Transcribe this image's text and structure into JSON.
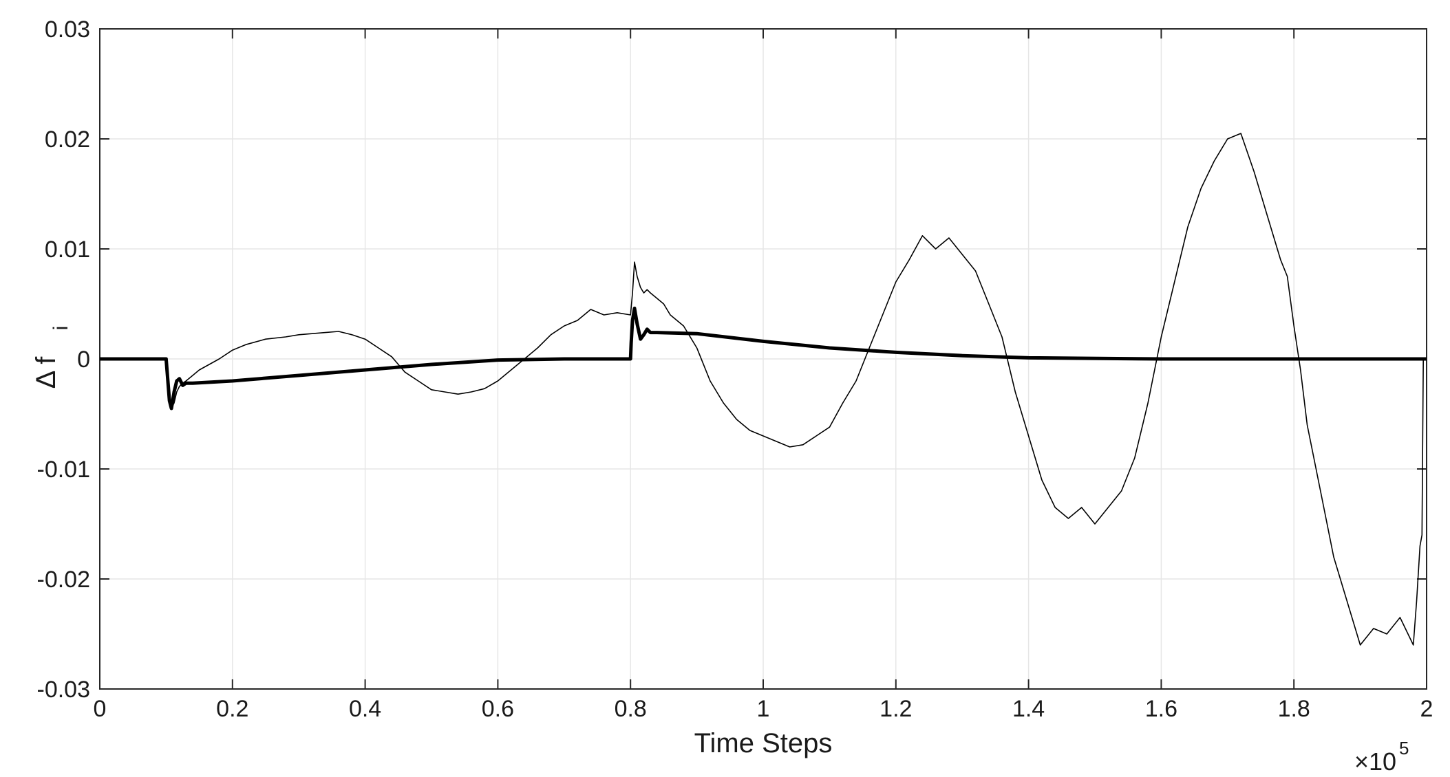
{
  "chart_data": {
    "type": "line",
    "title": "",
    "xlabel": "Time Steps",
    "ylabel_main": "Δ f",
    "ylabel_sub": "i",
    "x_exponent_label": "×10",
    "x_exponent_power": "5",
    "xlim": [
      0,
      2
    ],
    "ylim": [
      -0.03,
      0.03
    ],
    "grid": true,
    "x_ticks": [
      0,
      0.2,
      0.4,
      0.6,
      0.8,
      1,
      1.2,
      1.4,
      1.6,
      1.8,
      2
    ],
    "x_tick_labels": [
      "0",
      "0.2",
      "0.4",
      "0.6",
      "0.8",
      "1",
      "1.2",
      "1.4",
      "1.6",
      "1.8",
      "2"
    ],
    "y_ticks": [
      0.03,
      0.02,
      0.01,
      0,
      -0.01,
      -0.02,
      -0.03
    ],
    "y_tick_labels": [
      "0.03",
      "0.02",
      "0.01",
      "0",
      "-0.01",
      "-0.02",
      "-0.03"
    ],
    "series": [
      {
        "style": "thin",
        "x": [
          0,
          0.1,
          0.104,
          0.108,
          0.112,
          0.116,
          0.12,
          0.125,
          0.13,
          0.14,
          0.15,
          0.18,
          0.2,
          0.22,
          0.25,
          0.28,
          0.3,
          0.32,
          0.34,
          0.36,
          0.38,
          0.4,
          0.42,
          0.44,
          0.45,
          0.46,
          0.48,
          0.5,
          0.52,
          0.54,
          0.56,
          0.58,
          0.6,
          0.62,
          0.64,
          0.66,
          0.68,
          0.7,
          0.72,
          0.74,
          0.76,
          0.78,
          0.8,
          0.803,
          0.806,
          0.81,
          0.815,
          0.82,
          0.825,
          0.83,
          0.84,
          0.85,
          0.86,
          0.88,
          0.9,
          0.92,
          0.94,
          0.96,
          0.98,
          1.0,
          1.02,
          1.04,
          1.06,
          1.08,
          1.1,
          1.12,
          1.14,
          1.16,
          1.18,
          1.2,
          1.22,
          1.24,
          1.26,
          1.28,
          1.3,
          1.32,
          1.34,
          1.36,
          1.38,
          1.4,
          1.42,
          1.44,
          1.46,
          1.48,
          1.5,
          1.52,
          1.54,
          1.56,
          1.58,
          1.6,
          1.62,
          1.64,
          1.66,
          1.68,
          1.7,
          1.72,
          1.74,
          1.76,
          1.78,
          1.79,
          1.8,
          1.81,
          1.82,
          1.84,
          1.86,
          1.88,
          1.9,
          1.92,
          1.94,
          1.96,
          1.98,
          1.985,
          1.99,
          1.993,
          1.995
        ],
        "y": [
          0,
          0,
          -0.0025,
          -0.0045,
          -0.004,
          -0.003,
          -0.0025,
          -0.0022,
          -0.002,
          -0.0015,
          -0.001,
          0.0,
          0.0008,
          0.0013,
          0.0018,
          0.002,
          0.0022,
          0.0023,
          0.0024,
          0.0025,
          0.0022,
          0.0018,
          0.001,
          0.0002,
          -0.0005,
          -0.0012,
          -0.002,
          -0.0028,
          -0.003,
          -0.0032,
          -0.003,
          -0.0027,
          -0.002,
          -0.001,
          0.0,
          0.001,
          0.0022,
          0.003,
          0.0035,
          0.0045,
          0.004,
          0.0042,
          0.004,
          0.006,
          0.0088,
          0.0075,
          0.0065,
          0.006,
          0.0063,
          0.006,
          0.0055,
          0.005,
          0.004,
          0.003,
          0.001,
          -0.002,
          -0.004,
          -0.0055,
          -0.0065,
          -0.007,
          -0.0075,
          -0.008,
          -0.0078,
          -0.007,
          -0.0062,
          -0.004,
          -0.002,
          0.001,
          0.004,
          0.007,
          0.009,
          0.0112,
          0.01,
          0.011,
          0.0095,
          0.008,
          0.005,
          0.002,
          -0.003,
          -0.007,
          -0.011,
          -0.0135,
          -0.0145,
          -0.0135,
          -0.015,
          -0.0135,
          -0.012,
          -0.009,
          -0.004,
          0.002,
          0.007,
          0.012,
          0.0155,
          0.018,
          0.02,
          0.0205,
          0.017,
          0.013,
          0.009,
          0.0075,
          0.003,
          -0.001,
          -0.006,
          -0.012,
          -0.018,
          -0.022,
          -0.026,
          -0.0245,
          -0.025,
          -0.0235,
          -0.026,
          -0.022,
          -0.017,
          -0.016,
          0.0
        ]
      },
      {
        "style": "thick",
        "x": [
          0,
          0.1,
          0.102,
          0.105,
          0.108,
          0.112,
          0.116,
          0.12,
          0.125,
          0.13,
          0.14,
          0.2,
          0.3,
          0.4,
          0.5,
          0.6,
          0.7,
          0.8,
          0.801,
          0.803,
          0.806,
          0.81,
          0.815,
          0.82,
          0.825,
          0.83,
          0.84,
          0.9,
          1.0,
          1.1,
          1.2,
          1.3,
          1.4,
          1.6,
          1.8,
          2.0
        ],
        "y": [
          0,
          0,
          -0.0015,
          -0.0038,
          -0.0045,
          -0.003,
          -0.002,
          -0.0018,
          -0.0024,
          -0.0022,
          -0.0022,
          -0.002,
          -0.0015,
          -0.001,
          -0.0005,
          -0.0001,
          0.0,
          0.0,
          0.0015,
          0.0035,
          0.0046,
          0.0032,
          0.0018,
          0.0022,
          0.0027,
          0.0024,
          0.0024,
          0.0023,
          0.0016,
          0.001,
          0.0006,
          0.0003,
          0.0001,
          0.0,
          0.0,
          0.0
        ]
      }
    ]
  }
}
